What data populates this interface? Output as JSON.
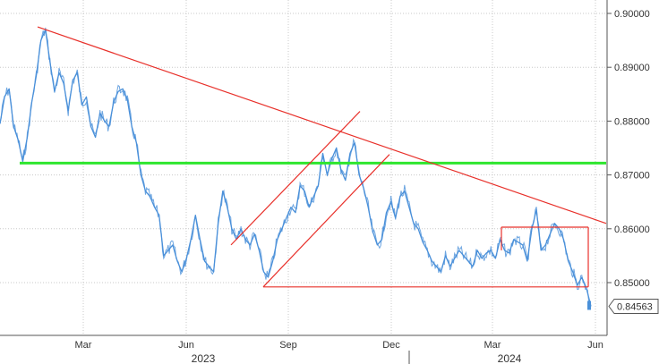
{
  "chart_data": {
    "type": "line",
    "title": "",
    "xlabel": "",
    "ylabel": "",
    "grid": true,
    "colors": {
      "price": "#4a90d9",
      "trendline": "#e8302a",
      "support": "#2ee62e",
      "grid": "#c8c8c8"
    },
    "ylim": [
      0.842,
      0.902
    ],
    "y_ticks": [
      0.85,
      0.86,
      0.87,
      0.88,
      0.89,
      0.9
    ],
    "y_tick_labels": [
      "0.85000",
      "0.86000",
      "0.87000",
      "0.88000",
      "0.89000",
      "0.90000"
    ],
    "x_ticks": [
      "Mar",
      "Jun",
      "Sep",
      "Dec",
      "Mar",
      "Jun"
    ],
    "year_labels": [
      "2023",
      "2024"
    ],
    "last_value_label": "0.84563",
    "series": [
      {
        "values": [
          0.8795,
          0.8845,
          0.886,
          0.879,
          0.8765,
          0.8725,
          0.877,
          0.8835,
          0.8885,
          0.895,
          0.897,
          0.891,
          0.8855,
          0.889,
          0.887,
          0.882,
          0.8875,
          0.889,
          0.883,
          0.8845,
          0.879,
          0.877,
          0.8815,
          0.88,
          0.879,
          0.8835,
          0.8855,
          0.886,
          0.884,
          0.879,
          0.876,
          0.87,
          0.867,
          0.866,
          0.864,
          0.8625,
          0.855,
          0.856,
          0.857,
          0.854,
          0.852,
          0.8545,
          0.858,
          0.8625,
          0.858,
          0.854,
          0.853,
          0.852,
          0.861,
          0.867,
          0.864,
          0.86,
          0.858,
          0.86,
          0.858,
          0.857,
          0.859,
          0.856,
          0.852,
          0.851,
          0.854,
          0.858,
          0.86,
          0.862,
          0.864,
          0.863,
          0.868,
          0.867,
          0.864,
          0.866,
          0.868,
          0.874,
          0.87,
          0.873,
          0.875,
          0.871,
          0.869,
          0.874,
          0.876,
          0.87,
          0.8675,
          0.864,
          0.8595,
          0.857,
          0.858,
          0.863,
          0.865,
          0.862,
          0.866,
          0.867,
          0.864,
          0.861,
          0.86,
          0.8575,
          0.856,
          0.854,
          0.853,
          0.852,
          0.855,
          0.853,
          0.8545,
          0.856,
          0.855,
          0.854,
          0.853,
          0.856,
          0.8545,
          0.8555,
          0.856,
          0.8545,
          0.858,
          0.856,
          0.8555,
          0.858,
          0.8575,
          0.857,
          0.854,
          0.86,
          0.8635,
          0.856,
          0.857,
          0.859,
          0.861,
          0.86,
          0.858,
          0.854,
          0.852,
          0.8495,
          0.851,
          0.849,
          0.8456
        ]
      }
    ]
  }
}
